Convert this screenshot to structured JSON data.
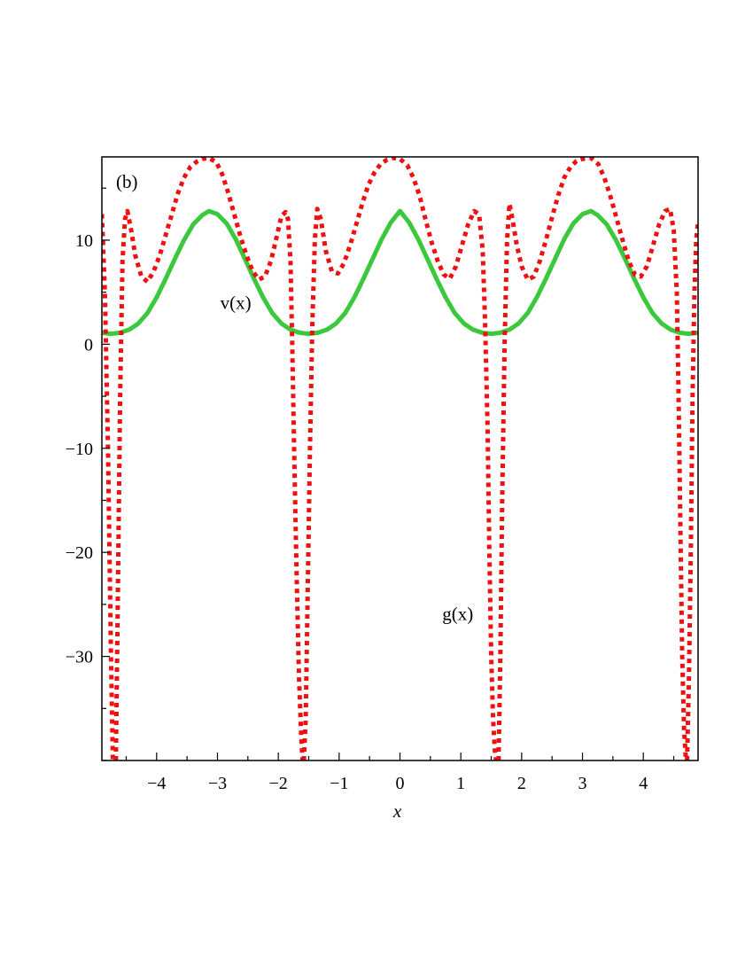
{
  "chart_data": {
    "type": "line",
    "panel_label": "(b)",
    "title": "",
    "xlabel": "x",
    "ylabel": "",
    "xlim": [
      -4.9,
      4.9
    ],
    "ylim": [
      -40,
      18
    ],
    "x_ticks": [
      -4,
      -3,
      -2,
      -1,
      0,
      1,
      2,
      3,
      4
    ],
    "x_tick_labels": [
      "−4",
      "−3",
      "−2",
      "−1",
      "0",
      "1",
      "2",
      "3",
      "4"
    ],
    "x_minor_step": 0.5,
    "y_ticks": [
      10,
      0,
      -10,
      -20,
      -30
    ],
    "y_tick_labels": [
      "10",
      "0",
      "−10",
      "−20",
      "−30"
    ],
    "y_minor_step": 5,
    "grid": false,
    "series": [
      {
        "name": "v(x)",
        "color": "#3cc83c",
        "style": "solid",
        "label_at": {
          "x": -2.7,
          "y": 3.4
        },
        "x": [
          -4.9,
          -4.75,
          -4.6,
          -4.45,
          -4.3,
          -4.15,
          -4.0,
          -3.85,
          -3.7,
          -3.55,
          -3.4,
          -3.25,
          -3.14,
          -3.0,
          -2.85,
          -2.7,
          -2.55,
          -2.4,
          -2.25,
          -2.1,
          -1.95,
          -1.8,
          -1.65,
          -1.5,
          -1.35,
          -1.2,
          -1.05,
          -0.9,
          -0.75,
          -0.6,
          -0.45,
          -0.3,
          -0.15,
          0.0,
          0.15,
          0.3,
          0.45,
          0.6,
          0.75,
          0.9,
          1.05,
          1.2,
          1.35,
          1.5,
          1.65,
          1.8,
          1.95,
          2.1,
          2.25,
          2.4,
          2.55,
          2.7,
          2.85,
          3.0,
          3.14,
          3.25,
          3.4,
          3.55,
          3.7,
          3.85,
          4.0,
          4.15,
          4.3,
          4.45,
          4.6,
          4.75,
          4.9
        ],
        "y": [
          1.1,
          1.0,
          1.1,
          1.4,
          2.0,
          3.0,
          4.5,
          6.3,
          8.2,
          10.0,
          11.5,
          12.4,
          12.8,
          12.5,
          11.6,
          10.1,
          8.2,
          6.3,
          4.5,
          3.0,
          2.0,
          1.4,
          1.1,
          1.0,
          1.1,
          1.4,
          2.0,
          3.0,
          4.5,
          6.3,
          8.2,
          10.1,
          11.7,
          12.8,
          11.7,
          10.1,
          8.2,
          6.3,
          4.5,
          3.0,
          2.0,
          1.4,
          1.1,
          1.0,
          1.1,
          1.4,
          2.0,
          3.0,
          4.5,
          6.3,
          8.2,
          10.1,
          11.6,
          12.5,
          12.8,
          12.4,
          11.5,
          10.0,
          8.2,
          6.3,
          4.5,
          3.0,
          2.0,
          1.4,
          1.1,
          1.0,
          1.1
        ]
      },
      {
        "name": "g(x)",
        "color": "#ee1111",
        "style": "dotted",
        "label_at": {
          "x": 0.95,
          "y": -26.5
        },
        "segments": [
          {
            "x": [
              -4.9,
              -4.85,
              -4.8,
              -4.75,
              -4.72
            ],
            "y": [
              12.5,
              5.0,
              -10.0,
              -30.0,
              -40.0
            ]
          },
          {
            "x": [
              -4.67,
              -4.64,
              -4.6,
              -4.56,
              -4.52,
              -4.48,
              -4.42,
              -4.35,
              -4.25,
              -4.15,
              -4.05,
              -3.95,
              -3.85,
              -3.75,
              -3.65,
              -3.55,
              -3.45,
              -3.35,
              -3.25,
              -3.14,
              -3.02,
              -2.92,
              -2.82,
              -2.72,
              -2.62,
              -2.52,
              -2.42,
              -2.32,
              -2.22,
              -2.12,
              -2.02,
              -1.95,
              -1.88,
              -1.84,
              -1.8,
              -1.77,
              -1.74,
              -1.7,
              -1.66,
              -1.62,
              -1.6
            ],
            "y": [
              -40.0,
              -25.0,
              -5.0,
              8.0,
              12.0,
              12.8,
              11.0,
              8.5,
              6.5,
              6.0,
              7.0,
              8.5,
              10.5,
              12.5,
              14.5,
              16.0,
              17.0,
              17.5,
              17.8,
              17.9,
              17.5,
              16.3,
              14.5,
              12.4,
              10.3,
              8.5,
              7.0,
              6.2,
              6.5,
              8.0,
              10.5,
              12.3,
              12.7,
              12.0,
              8.0,
              0.0,
              -10.0,
              -22.0,
              -32.0,
              -38.0,
              -40.0
            ]
          },
          {
            "x": [
              -1.58,
              -1.55,
              -1.52,
              -1.48,
              -1.44,
              -1.4,
              -1.36,
              -1.3,
              -1.22,
              -1.12,
              -1.02,
              -0.92,
              -0.82,
              -0.72,
              -0.62,
              -0.52,
              -0.42,
              -0.32,
              -0.22,
              -0.12,
              0.0,
              0.12,
              0.22,
              0.32,
              0.42,
              0.52,
              0.62,
              0.72,
              0.82,
              0.92,
              1.02,
              1.12,
              1.22,
              1.3,
              1.36,
              1.4,
              1.44,
              1.47,
              1.5,
              1.53,
              1.56,
              1.58
            ],
            "y": [
              -40.0,
              -36.0,
              -25.0,
              -10.0,
              2.0,
              10.0,
              13.0,
              12.0,
              9.0,
              7.0,
              6.8,
              7.8,
              9.5,
              11.5,
              13.5,
              15.3,
              16.5,
              17.3,
              17.7,
              17.9,
              17.8,
              17.2,
              16.0,
              14.3,
              12.0,
              9.8,
              8.0,
              6.7,
              6.3,
              7.5,
              9.5,
              11.5,
              12.8,
              12.5,
              9.0,
              2.0,
              -8.0,
              -20.0,
              -30.0,
              -36.0,
              -39.0,
              -40.0
            ]
          },
          {
            "x": [
              1.62,
              1.65,
              1.68,
              1.72,
              1.76,
              1.8,
              1.85,
              1.92,
              2.0,
              2.1,
              2.2,
              2.3,
              2.4,
              2.5,
              2.6,
              2.7,
              2.8,
              2.9,
              3.0,
              3.14,
              3.26,
              3.36,
              3.46,
              3.56,
              3.66,
              3.76,
              3.86,
              3.96,
              4.06,
              4.16,
              4.26,
              4.36,
              4.44,
              4.5,
              4.55,
              4.58,
              4.61,
              4.64,
              4.67,
              4.7
            ],
            "y": [
              -40.0,
              -30.0,
              -15.0,
              0.0,
              10.0,
              13.5,
              12.0,
              9.5,
              7.5,
              6.2,
              6.5,
              8.0,
              10.0,
              12.2,
              14.3,
              16.0,
              17.0,
              17.6,
              17.8,
              17.9,
              17.3,
              16.0,
              14.2,
              12.1,
              10.0,
              8.0,
              6.7,
              6.5,
              7.5,
              9.5,
              11.5,
              12.8,
              13.0,
              11.0,
              5.0,
              -5.0,
              -18.0,
              -30.0,
              -37.0,
              -40.0
            ]
          },
          {
            "x": [
              4.72,
              4.75,
              4.78,
              4.81,
              4.84,
              4.87,
              4.9
            ],
            "y": [
              -40.0,
              -32.0,
              -20.0,
              -5.0,
              5.0,
              10.0,
              11.8
            ]
          }
        ]
      }
    ]
  }
}
